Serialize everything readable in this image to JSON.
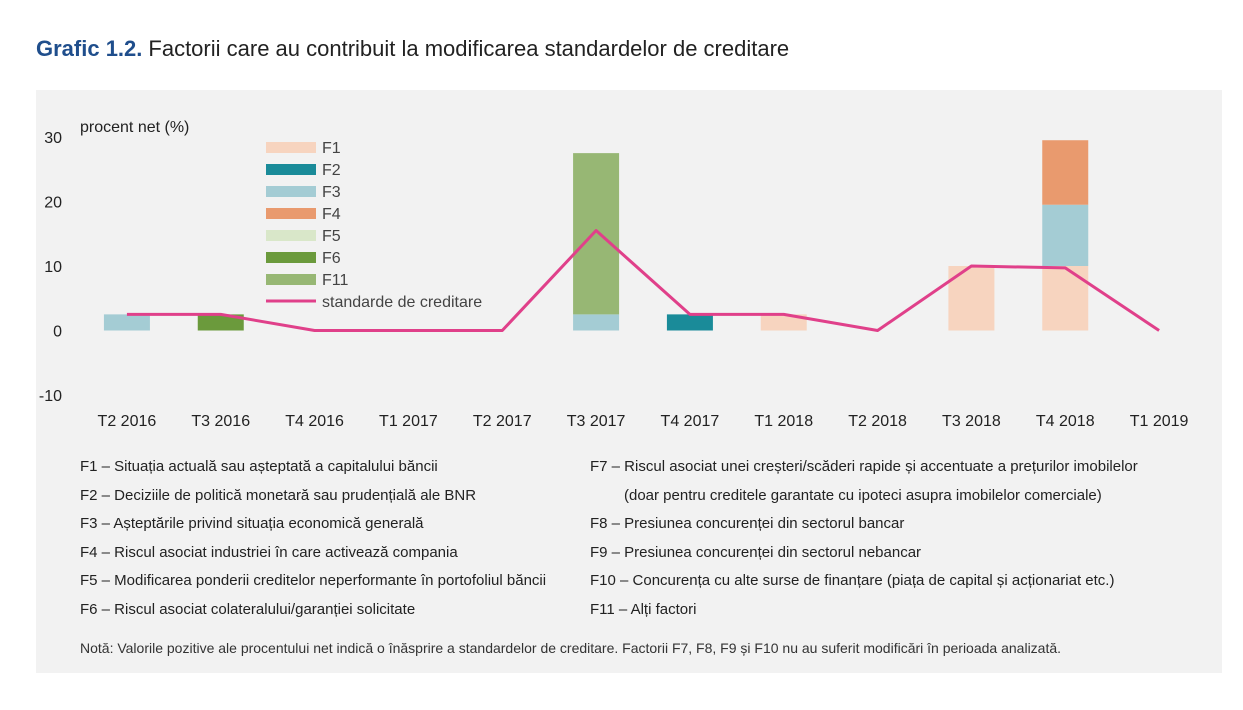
{
  "title": {
    "number": "Grafic 1.2.",
    "text": "Factorii care au contribuit la modificarea standardelor de creditare"
  },
  "chart_data": {
    "type": "bar",
    "ylabel": "procent net (%)",
    "ylim": [
      -10,
      30
    ],
    "yticks": [
      30,
      20,
      10,
      0,
      -10
    ],
    "categories": [
      "T2 2016",
      "T3 2016",
      "T4 2016",
      "T1 2017",
      "T2 2017",
      "T3 2017",
      "T4 2017",
      "T1 2018",
      "T2 2018",
      "T3 2018",
      "T4 2018",
      "T1 2019"
    ],
    "series": [
      {
        "name": "F1",
        "color": "#f7d4bf",
        "values": [
          0,
          0,
          0,
          0,
          0,
          0,
          0,
          2.5,
          0,
          10,
          10,
          0
        ]
      },
      {
        "name": "F2",
        "color": "#1a8b99",
        "values": [
          0,
          0,
          0,
          0,
          0,
          0,
          2.5,
          0,
          0,
          0,
          0,
          0
        ]
      },
      {
        "name": "F3",
        "color": "#a4ccd4",
        "values": [
          2.5,
          0,
          0,
          0,
          0,
          2.5,
          0,
          0,
          0,
          0,
          9.5,
          0
        ]
      },
      {
        "name": "F4",
        "color": "#e99a6e",
        "values": [
          0,
          0,
          0,
          0,
          0,
          0,
          0,
          0,
          0,
          0,
          10,
          0
        ]
      },
      {
        "name": "F5",
        "color": "#d9e7c9",
        "values": [
          0,
          0,
          0,
          0,
          0,
          0,
          0,
          0,
          0,
          0,
          0,
          0
        ]
      },
      {
        "name": "F6",
        "color": "#6b9a3c",
        "values": [
          0,
          2.5,
          0,
          0,
          0,
          0,
          0,
          0,
          0,
          0,
          0,
          0
        ]
      },
      {
        "name": "F11",
        "color": "#97b774",
        "values": [
          0,
          0,
          0,
          0,
          0,
          25,
          0,
          0,
          0,
          0,
          0,
          0
        ]
      }
    ],
    "line": {
      "name": "standarde de creditare",
      "color": "#e0408a",
      "values": [
        2.5,
        2.5,
        0,
        0,
        0,
        15.5,
        2.5,
        2.5,
        0,
        10,
        9.7,
        0
      ]
    },
    "legend": "top-left"
  },
  "factors_left": [
    "F1 – Situația actuală sau așteptată a capitalului băncii",
    "F2 – Deciziile de politică monetară sau prudențială ale BNR",
    "F3 – Așteptările privind situația economică generală",
    "F4 – Riscul asociat industriei în care activează compania",
    "F5 – Modificarea ponderii creditelor neperformante în portofoliul băncii",
    "F6 – Riscul asociat colateralului/garanției solicitate"
  ],
  "factors_right": [
    "F7 – Riscul asociat unei creșteri/scăderi rapide și accentuate a prețurilor imobilelor",
    "(doar pentru creditele garantate cu ipoteci asupra imobilelor comerciale)",
    "F8 – Presiunea concurenței din sectorul bancar",
    "F9 – Presiunea concurenței din sectorul nebancar",
    "F10 – Concurența cu alte surse de finanțare (piața de capital și acționariat etc.)",
    "F11 – Alți factori"
  ],
  "note": "Notă: Valorile pozitive ale procentului net indică o înăsprire a standardelor de creditare. Factorii F7, F8, F9 și F10 nu au suferit modificări în perioada analizată."
}
